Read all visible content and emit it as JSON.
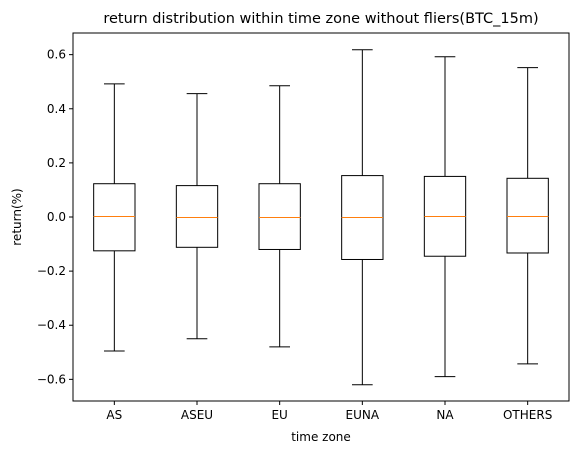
{
  "chart_data": {
    "type": "box",
    "title": "return distribution within time zone without fliers(BTC_15m)",
    "xlabel": "time zone",
    "ylabel": "return(%)",
    "ylim": [
      -0.68,
      0.68
    ],
    "yticks": [
      -0.6,
      -0.4,
      -0.2,
      0.0,
      0.2,
      0.4,
      0.6
    ],
    "ytick_labels": [
      "−0.6",
      "−0.4",
      "−0.2",
      "0.0",
      "0.2",
      "0.4",
      "0.6"
    ],
    "grid": false,
    "showfliers": false,
    "categories": [
      "AS",
      "ASEU",
      "EU",
      "EUNA",
      "NA",
      "OTHERS"
    ],
    "boxes": [
      {
        "label": "AS",
        "whislo": -0.495,
        "q1": -0.125,
        "med": 0.002,
        "q3": 0.123,
        "whishi": 0.492
      },
      {
        "label": "ASEU",
        "whislo": -0.45,
        "q1": -0.112,
        "med": -0.002,
        "q3": 0.116,
        "whishi": 0.456
      },
      {
        "label": "EU",
        "whislo": -0.48,
        "q1": -0.12,
        "med": -0.002,
        "q3": 0.123,
        "whishi": 0.485
      },
      {
        "label": "EUNA",
        "whislo": -0.62,
        "q1": -0.157,
        "med": -0.002,
        "q3": 0.153,
        "whishi": 0.618
      },
      {
        "label": "NA",
        "whislo": -0.59,
        "q1": -0.145,
        "med": 0.002,
        "q3": 0.15,
        "whishi": 0.592
      },
      {
        "label": "OTHERS",
        "whislo": -0.543,
        "q1": -0.133,
        "med": 0.002,
        "q3": 0.143,
        "whishi": 0.552
      }
    ],
    "colors": {
      "box": "#000000",
      "median": "#ff7f0e",
      "axes": "#000000",
      "background": "#ffffff"
    }
  }
}
